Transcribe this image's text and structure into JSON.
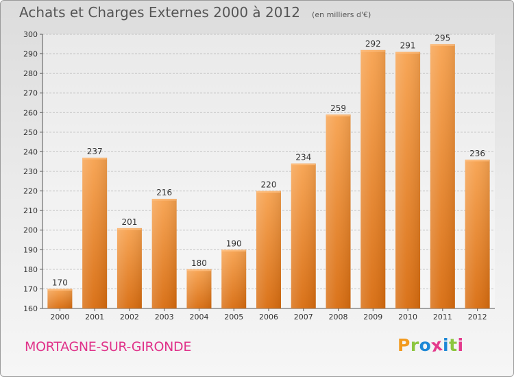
{
  "title": "Achats et Charges Externes 2000 à 2012",
  "subtitle": "(en milliers d'€)",
  "commune": "MORTAGNE-SUR-GIRONDE",
  "logo": {
    "letters": [
      "P",
      "r",
      "o",
      "x",
      "i",
      "t",
      "i"
    ],
    "colors": [
      "#f29a1f",
      "#8cc63f",
      "#1e88d6",
      "#e43a8c",
      "#1e88d6",
      "#8cc63f",
      "#e43a8c"
    ]
  },
  "colors": {
    "bar_top": "#f7a24f",
    "bar_bottom": "#d86c0f",
    "commune_text": "#e0338a"
  },
  "chart_data": {
    "type": "bar",
    "categories": [
      "2000",
      "2001",
      "2002",
      "2003",
      "2004",
      "2005",
      "2006",
      "2007",
      "2008",
      "2009",
      "2010",
      "2011",
      "2012"
    ],
    "values": [
      170,
      237,
      201,
      216,
      180,
      190,
      220,
      234,
      259,
      292,
      291,
      295,
      236
    ],
    "ylim": [
      160,
      300
    ],
    "yticks": [
      160,
      170,
      180,
      190,
      200,
      210,
      220,
      230,
      240,
      250,
      260,
      270,
      280,
      290,
      300
    ],
    "grid": true,
    "xlabel": "",
    "ylabel": ""
  }
}
